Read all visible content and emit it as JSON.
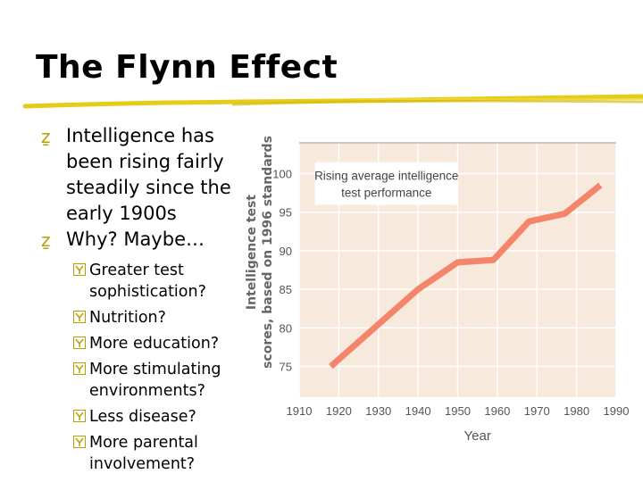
{
  "slide": {
    "title": "The Flynn Effect"
  },
  "bullets": [
    {
      "text": "Intelligence has been rising fairly steadily since the early 1900s"
    },
    {
      "text": "Why? Maybe…"
    }
  ],
  "sub_bullets": [
    {
      "text": "Greater test sophistication?"
    },
    {
      "text": "Nutrition?"
    },
    {
      "text": "More education?"
    },
    {
      "text": "More stimulating environments?"
    },
    {
      "text": "Less disease?"
    },
    {
      "text": "More parental involvement?"
    }
  ],
  "colors": {
    "accent_yellow": "#e6cc1a",
    "bullet_mark": "#b8a000",
    "plot_background": "#f7e9dc",
    "line": "#f4856a"
  },
  "chart_data": {
    "type": "line",
    "annotation": [
      "Rising average intelligence",
      "test performance"
    ],
    "ylabel": [
      "Intelligence test",
      "scores, based on 1996 standards"
    ],
    "xlabel": "Year",
    "x_ticks": [
      "1910",
      "1920",
      "1930",
      "1940",
      "1950",
      "1960",
      "1970",
      "1980",
      "1990"
    ],
    "y_ticks": [
      "75",
      "80",
      "85",
      "90",
      "95",
      "100"
    ],
    "xlim": [
      1910,
      1990
    ],
    "ylim": [
      71,
      104
    ],
    "grid": true,
    "x": [
      1918,
      1929,
      1940,
      1950,
      1959,
      1968,
      1977,
      1986
    ],
    "y": [
      75,
      80,
      85,
      88.5,
      88.8,
      93.8,
      94.8,
      98.5
    ]
  }
}
